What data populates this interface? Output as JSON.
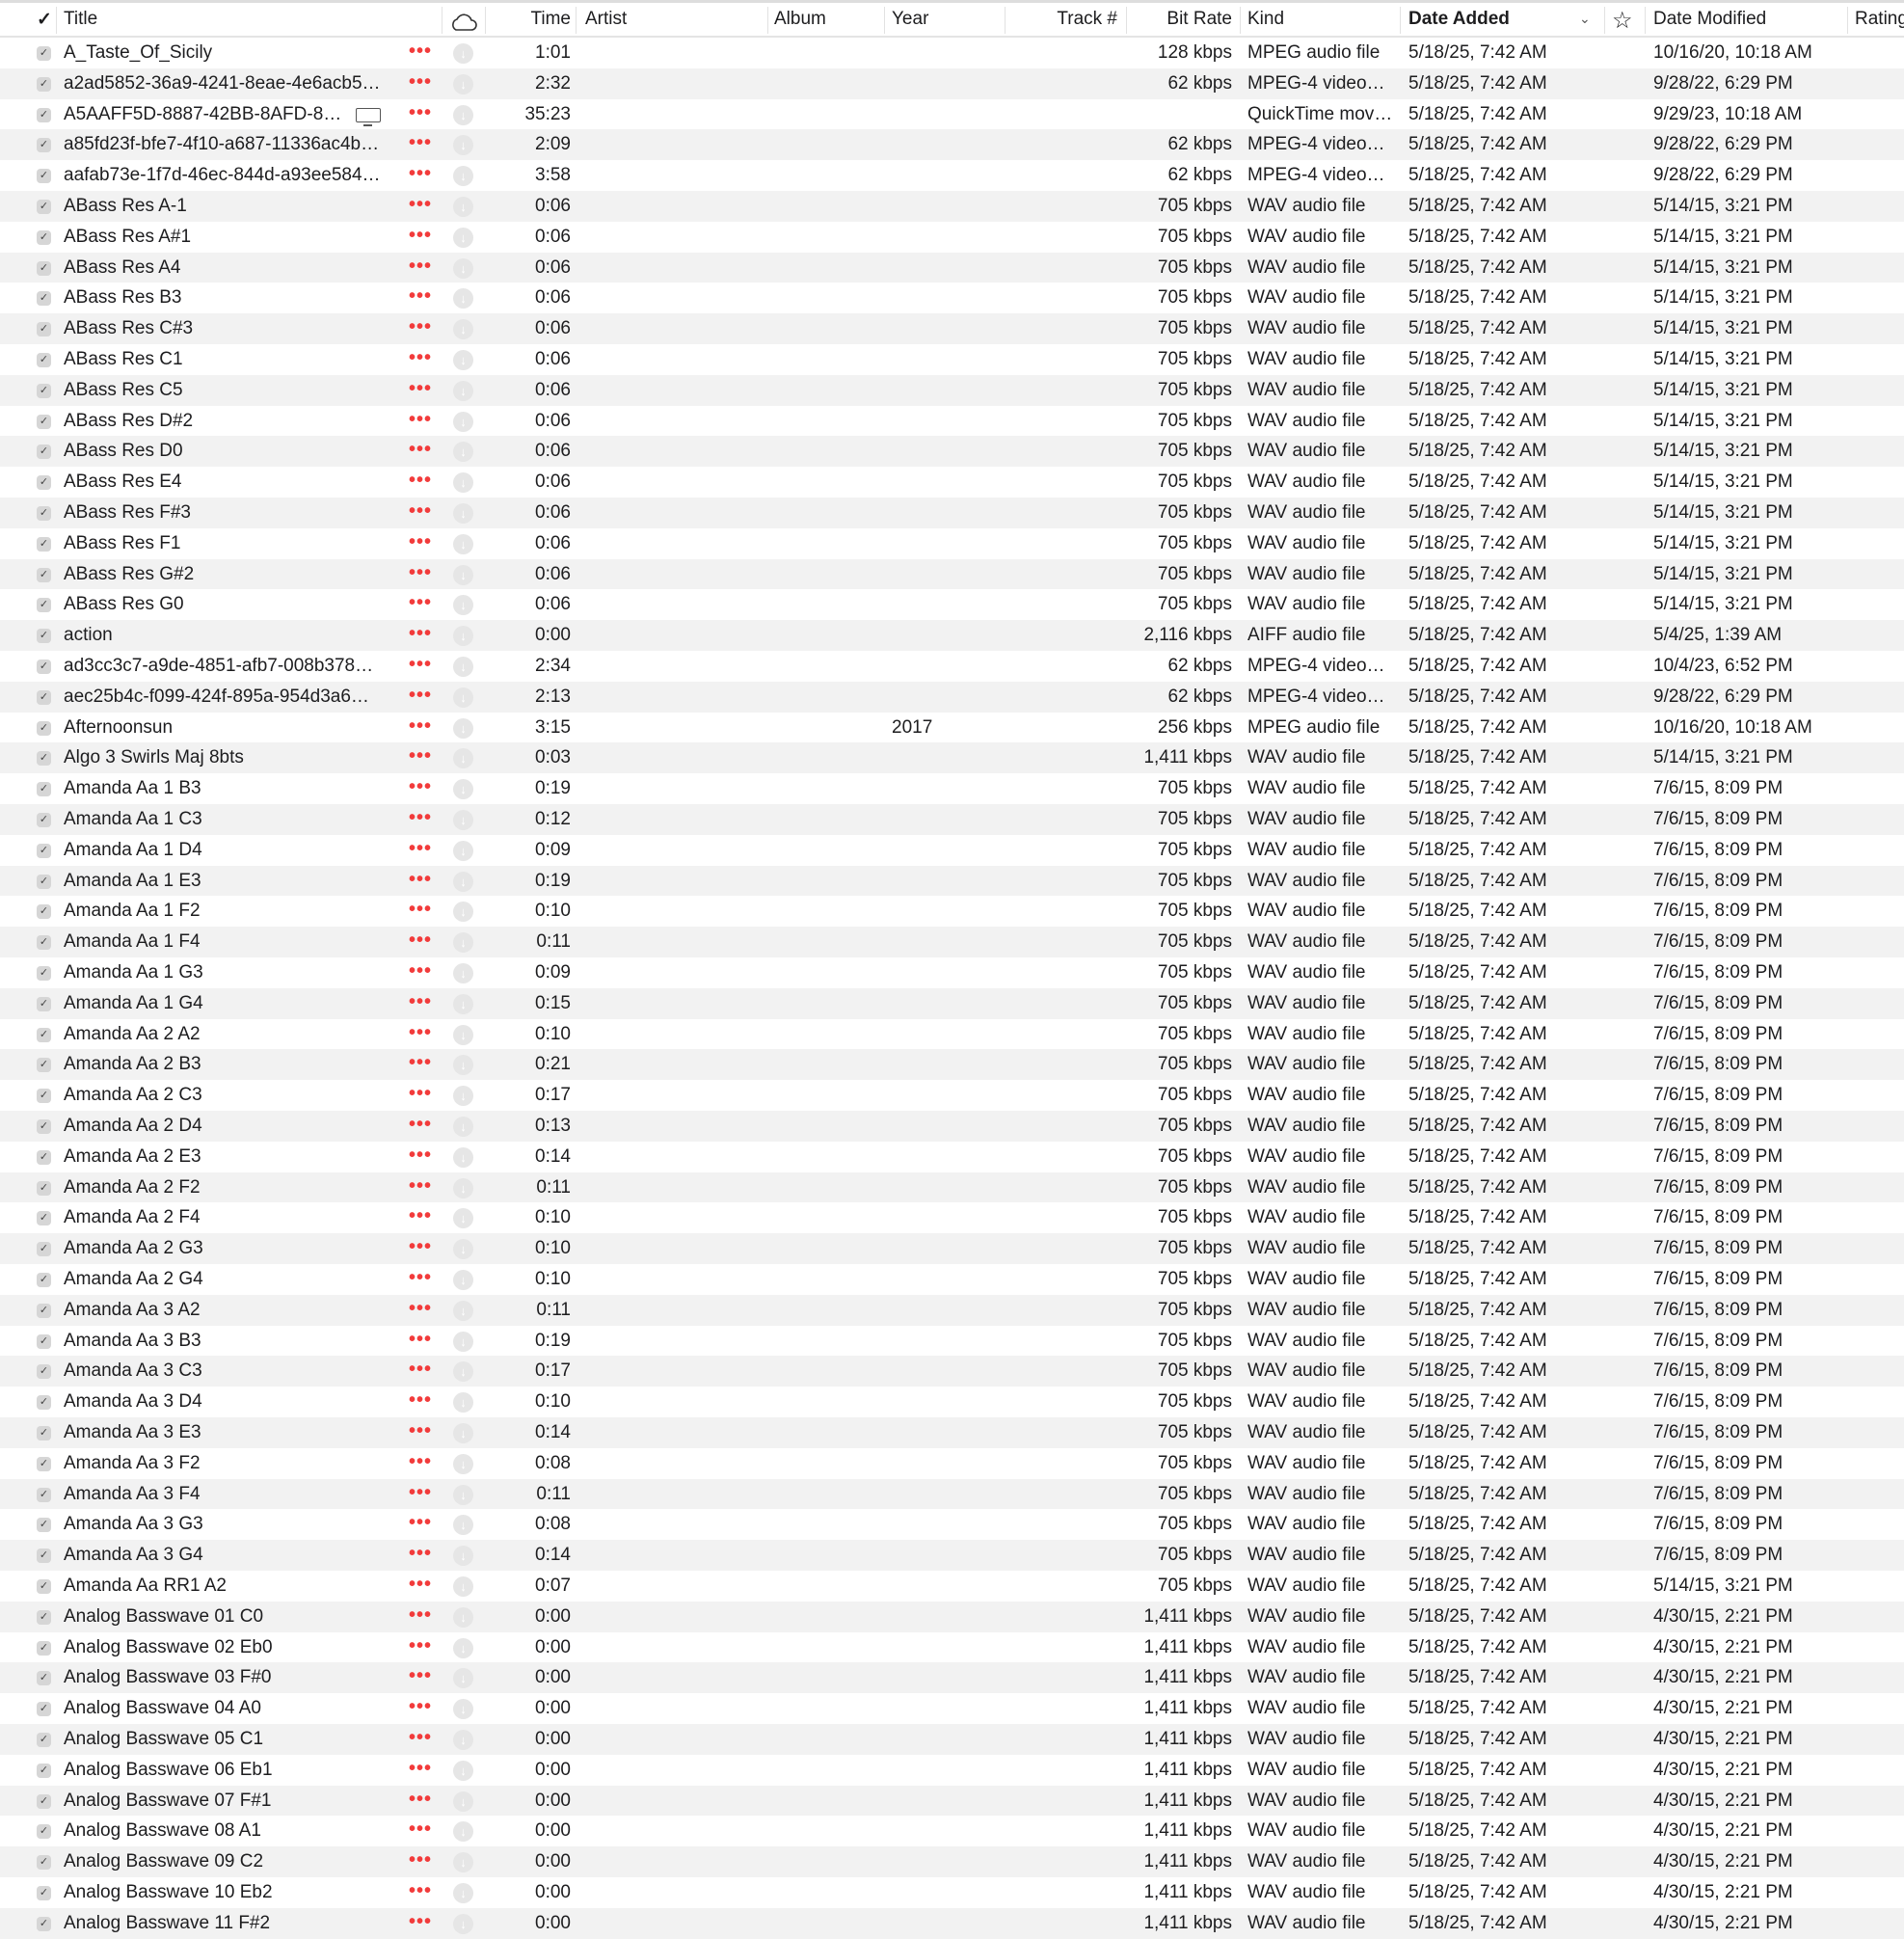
{
  "header": {
    "check": "✓",
    "title": "Title",
    "time": "Time",
    "artist": "Artist",
    "album": "Album",
    "year": "Year",
    "track": "Track #",
    "bitrate": "Bit Rate",
    "kind": "Kind",
    "date_added": "Date Added",
    "date_modified": "Date Modified",
    "rating": "Rating",
    "sort_column": "Date Added",
    "sort_direction": "descending"
  },
  "colors": {
    "accent_dots": "#f23b3b",
    "row_alt": "#f2f2f2"
  },
  "rows": [
    [
      "A_Taste_Of_Sicily",
      "1:01",
      "",
      "128 kbps",
      "MPEG audio file",
      "5/18/25, 7:42 AM",
      "10/16/20, 10:18 AM"
    ],
    [
      "a2ad5852-36a9-4241-8eae-4e6acb5…",
      "2:32",
      "",
      "62 kbps",
      "MPEG-4 video…",
      "5/18/25, 7:42 AM",
      "9/28/22, 6:29 PM"
    ],
    [
      "A5AAFF5D-8887-42BB-8AFD-8…",
      "35:23",
      "",
      "",
      "QuickTime mov…",
      "5/18/25, 7:42 AM",
      "9/29/23, 10:18 AM",
      "screen-icon"
    ],
    [
      "a85fd23f-bfe7-4f10-a687-11336ac4b…",
      "2:09",
      "",
      "62 kbps",
      "MPEG-4 video…",
      "5/18/25, 7:42 AM",
      "9/28/22, 6:29 PM"
    ],
    [
      "aafab73e-1f7d-46ec-844d-a93ee584…",
      "3:58",
      "",
      "62 kbps",
      "MPEG-4 video…",
      "5/18/25, 7:42 AM",
      "9/28/22, 6:29 PM"
    ],
    [
      "ABass Res A-1",
      "0:06",
      "",
      "705 kbps",
      "WAV audio file",
      "5/18/25, 7:42 AM",
      "5/14/15, 3:21 PM"
    ],
    [
      "ABass Res A#1",
      "0:06",
      "",
      "705 kbps",
      "WAV audio file",
      "5/18/25, 7:42 AM",
      "5/14/15, 3:21 PM"
    ],
    [
      "ABass Res A4",
      "0:06",
      "",
      "705 kbps",
      "WAV audio file",
      "5/18/25, 7:42 AM",
      "5/14/15, 3:21 PM"
    ],
    [
      "ABass Res B3",
      "0:06",
      "",
      "705 kbps",
      "WAV audio file",
      "5/18/25, 7:42 AM",
      "5/14/15, 3:21 PM"
    ],
    [
      "ABass Res C#3",
      "0:06",
      "",
      "705 kbps",
      "WAV audio file",
      "5/18/25, 7:42 AM",
      "5/14/15, 3:21 PM"
    ],
    [
      "ABass Res C1",
      "0:06",
      "",
      "705 kbps",
      "WAV audio file",
      "5/18/25, 7:42 AM",
      "5/14/15, 3:21 PM"
    ],
    [
      "ABass Res C5",
      "0:06",
      "",
      "705 kbps",
      "WAV audio file",
      "5/18/25, 7:42 AM",
      "5/14/15, 3:21 PM"
    ],
    [
      "ABass Res D#2",
      "0:06",
      "",
      "705 kbps",
      "WAV audio file",
      "5/18/25, 7:42 AM",
      "5/14/15, 3:21 PM"
    ],
    [
      "ABass Res D0",
      "0:06",
      "",
      "705 kbps",
      "WAV audio file",
      "5/18/25, 7:42 AM",
      "5/14/15, 3:21 PM"
    ],
    [
      "ABass Res E4",
      "0:06",
      "",
      "705 kbps",
      "WAV audio file",
      "5/18/25, 7:42 AM",
      "5/14/15, 3:21 PM"
    ],
    [
      "ABass Res F#3",
      "0:06",
      "",
      "705 kbps",
      "WAV audio file",
      "5/18/25, 7:42 AM",
      "5/14/15, 3:21 PM"
    ],
    [
      "ABass Res F1",
      "0:06",
      "",
      "705 kbps",
      "WAV audio file",
      "5/18/25, 7:42 AM",
      "5/14/15, 3:21 PM"
    ],
    [
      "ABass Res G#2",
      "0:06",
      "",
      "705 kbps",
      "WAV audio file",
      "5/18/25, 7:42 AM",
      "5/14/15, 3:21 PM"
    ],
    [
      "ABass Res G0",
      "0:06",
      "",
      "705 kbps",
      "WAV audio file",
      "5/18/25, 7:42 AM",
      "5/14/15, 3:21 PM"
    ],
    [
      "action",
      "0:00",
      "",
      "2,116 kbps",
      "AIFF audio file",
      "5/18/25, 7:42 AM",
      "5/4/25, 1:39 AM"
    ],
    [
      "ad3cc3c7-a9de-4851-afb7-008b378…",
      "2:34",
      "",
      "62 kbps",
      "MPEG-4 video…",
      "5/18/25, 7:42 AM",
      "10/4/23, 6:52 PM"
    ],
    [
      "aec25b4c-f099-424f-895a-954d3a6…",
      "2:13",
      "",
      "62 kbps",
      "MPEG-4 video…",
      "5/18/25, 7:42 AM",
      "9/28/22, 6:29 PM"
    ],
    [
      "Afternoonsun",
      "3:15",
      "2017",
      "256 kbps",
      "MPEG audio file",
      "5/18/25, 7:42 AM",
      "10/16/20, 10:18 AM"
    ],
    [
      "Algo 3 Swirls Maj 8bts",
      "0:03",
      "",
      "1,411 kbps",
      "WAV audio file",
      "5/18/25, 7:42 AM",
      "5/14/15, 3:21 PM"
    ],
    [
      "Amanda Aa 1 B3",
      "0:19",
      "",
      "705 kbps",
      "WAV audio file",
      "5/18/25, 7:42 AM",
      "7/6/15, 8:09 PM"
    ],
    [
      "Amanda Aa 1 C3",
      "0:12",
      "",
      "705 kbps",
      "WAV audio file",
      "5/18/25, 7:42 AM",
      "7/6/15, 8:09 PM"
    ],
    [
      "Amanda Aa 1 D4",
      "0:09",
      "",
      "705 kbps",
      "WAV audio file",
      "5/18/25, 7:42 AM",
      "7/6/15, 8:09 PM"
    ],
    [
      "Amanda Aa 1 E3",
      "0:19",
      "",
      "705 kbps",
      "WAV audio file",
      "5/18/25, 7:42 AM",
      "7/6/15, 8:09 PM"
    ],
    [
      "Amanda Aa 1 F2",
      "0:10",
      "",
      "705 kbps",
      "WAV audio file",
      "5/18/25, 7:42 AM",
      "7/6/15, 8:09 PM"
    ],
    [
      "Amanda Aa 1 F4",
      "0:11",
      "",
      "705 kbps",
      "WAV audio file",
      "5/18/25, 7:42 AM",
      "7/6/15, 8:09 PM"
    ],
    [
      "Amanda Aa 1 G3",
      "0:09",
      "",
      "705 kbps",
      "WAV audio file",
      "5/18/25, 7:42 AM",
      "7/6/15, 8:09 PM"
    ],
    [
      "Amanda Aa 1 G4",
      "0:15",
      "",
      "705 kbps",
      "WAV audio file",
      "5/18/25, 7:42 AM",
      "7/6/15, 8:09 PM"
    ],
    [
      "Amanda Aa 2 A2",
      "0:10",
      "",
      "705 kbps",
      "WAV audio file",
      "5/18/25, 7:42 AM",
      "7/6/15, 8:09 PM"
    ],
    [
      "Amanda Aa 2 B3",
      "0:21",
      "",
      "705 kbps",
      "WAV audio file",
      "5/18/25, 7:42 AM",
      "7/6/15, 8:09 PM"
    ],
    [
      "Amanda Aa 2 C3",
      "0:17",
      "",
      "705 kbps",
      "WAV audio file",
      "5/18/25, 7:42 AM",
      "7/6/15, 8:09 PM"
    ],
    [
      "Amanda Aa 2 D4",
      "0:13",
      "",
      "705 kbps",
      "WAV audio file",
      "5/18/25, 7:42 AM",
      "7/6/15, 8:09 PM"
    ],
    [
      "Amanda Aa 2 E3",
      "0:14",
      "",
      "705 kbps",
      "WAV audio file",
      "5/18/25, 7:42 AM",
      "7/6/15, 8:09 PM"
    ],
    [
      "Amanda Aa 2 F2",
      "0:11",
      "",
      "705 kbps",
      "WAV audio file",
      "5/18/25, 7:42 AM",
      "7/6/15, 8:09 PM"
    ],
    [
      "Amanda Aa 2 F4",
      "0:10",
      "",
      "705 kbps",
      "WAV audio file",
      "5/18/25, 7:42 AM",
      "7/6/15, 8:09 PM"
    ],
    [
      "Amanda Aa 2 G3",
      "0:10",
      "",
      "705 kbps",
      "WAV audio file",
      "5/18/25, 7:42 AM",
      "7/6/15, 8:09 PM"
    ],
    [
      "Amanda Aa 2 G4",
      "0:10",
      "",
      "705 kbps",
      "WAV audio file",
      "5/18/25, 7:42 AM",
      "7/6/15, 8:09 PM"
    ],
    [
      "Amanda Aa 3 A2",
      "0:11",
      "",
      "705 kbps",
      "WAV audio file",
      "5/18/25, 7:42 AM",
      "7/6/15, 8:09 PM"
    ],
    [
      "Amanda Aa 3 B3",
      "0:19",
      "",
      "705 kbps",
      "WAV audio file",
      "5/18/25, 7:42 AM",
      "7/6/15, 8:09 PM"
    ],
    [
      "Amanda Aa 3 C3",
      "0:17",
      "",
      "705 kbps",
      "WAV audio file",
      "5/18/25, 7:42 AM",
      "7/6/15, 8:09 PM"
    ],
    [
      "Amanda Aa 3 D4",
      "0:10",
      "",
      "705 kbps",
      "WAV audio file",
      "5/18/25, 7:42 AM",
      "7/6/15, 8:09 PM"
    ],
    [
      "Amanda Aa 3 E3",
      "0:14",
      "",
      "705 kbps",
      "WAV audio file",
      "5/18/25, 7:42 AM",
      "7/6/15, 8:09 PM"
    ],
    [
      "Amanda Aa 3 F2",
      "0:08",
      "",
      "705 kbps",
      "WAV audio file",
      "5/18/25, 7:42 AM",
      "7/6/15, 8:09 PM"
    ],
    [
      "Amanda Aa 3 F4",
      "0:11",
      "",
      "705 kbps",
      "WAV audio file",
      "5/18/25, 7:42 AM",
      "7/6/15, 8:09 PM"
    ],
    [
      "Amanda Aa 3 G3",
      "0:08",
      "",
      "705 kbps",
      "WAV audio file",
      "5/18/25, 7:42 AM",
      "7/6/15, 8:09 PM"
    ],
    [
      "Amanda Aa 3 G4",
      "0:14",
      "",
      "705 kbps",
      "WAV audio file",
      "5/18/25, 7:42 AM",
      "7/6/15, 8:09 PM"
    ],
    [
      "Amanda Aa RR1 A2",
      "0:07",
      "",
      "705 kbps",
      "WAV audio file",
      "5/18/25, 7:42 AM",
      "5/14/15, 3:21 PM"
    ],
    [
      "Analog Basswave 01 C0",
      "0:00",
      "",
      "1,411 kbps",
      "WAV audio file",
      "5/18/25, 7:42 AM",
      "4/30/15, 2:21 PM"
    ],
    [
      "Analog Basswave 02 Eb0",
      "0:00",
      "",
      "1,411 kbps",
      "WAV audio file",
      "5/18/25, 7:42 AM",
      "4/30/15, 2:21 PM"
    ],
    [
      "Analog Basswave 03 F#0",
      "0:00",
      "",
      "1,411 kbps",
      "WAV audio file",
      "5/18/25, 7:42 AM",
      "4/30/15, 2:21 PM"
    ],
    [
      "Analog Basswave 04 A0",
      "0:00",
      "",
      "1,411 kbps",
      "WAV audio file",
      "5/18/25, 7:42 AM",
      "4/30/15, 2:21 PM"
    ],
    [
      "Analog Basswave 05 C1",
      "0:00",
      "",
      "1,411 kbps",
      "WAV audio file",
      "5/18/25, 7:42 AM",
      "4/30/15, 2:21 PM"
    ],
    [
      "Analog Basswave 06 Eb1",
      "0:00",
      "",
      "1,411 kbps",
      "WAV audio file",
      "5/18/25, 7:42 AM",
      "4/30/15, 2:21 PM"
    ],
    [
      "Analog Basswave 07 F#1",
      "0:00",
      "",
      "1,411 kbps",
      "WAV audio file",
      "5/18/25, 7:42 AM",
      "4/30/15, 2:21 PM"
    ],
    [
      "Analog Basswave 08 A1",
      "0:00",
      "",
      "1,411 kbps",
      "WAV audio file",
      "5/18/25, 7:42 AM",
      "4/30/15, 2:21 PM"
    ],
    [
      "Analog Basswave 09 C2",
      "0:00",
      "",
      "1,411 kbps",
      "WAV audio file",
      "5/18/25, 7:42 AM",
      "4/30/15, 2:21 PM"
    ],
    [
      "Analog Basswave 10 Eb2",
      "0:00",
      "",
      "1,411 kbps",
      "WAV audio file",
      "5/18/25, 7:42 AM",
      "4/30/15, 2:21 PM"
    ],
    [
      "Analog Basswave 11 F#2",
      "0:00",
      "",
      "1,411 kbps",
      "WAV audio file",
      "5/18/25, 7:42 AM",
      "4/30/15, 2:21 PM"
    ]
  ]
}
